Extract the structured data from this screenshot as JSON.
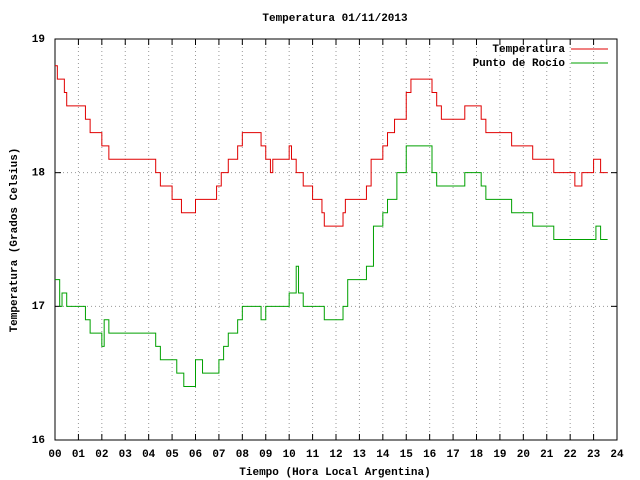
{
  "chart_data": {
    "type": "line",
    "step": true,
    "title": "Temperatura 01/11/2013",
    "xlabel": "Tiempo (Hora Local Argentina)",
    "ylabel": "Temperatura (Grados Celsius)",
    "xlim": [
      0,
      24
    ],
    "ylim": [
      16,
      19
    ],
    "xticks": [
      {
        "value": 0,
        "label": "00"
      },
      {
        "value": 1,
        "label": "01"
      },
      {
        "value": 2,
        "label": "02"
      },
      {
        "value": 3,
        "label": "03"
      },
      {
        "value": 4,
        "label": "04"
      },
      {
        "value": 5,
        "label": "05"
      },
      {
        "value": 6,
        "label": "06"
      },
      {
        "value": 7,
        "label": "07"
      },
      {
        "value": 8,
        "label": "08"
      },
      {
        "value": 9,
        "label": "09"
      },
      10,
      11,
      12,
      13,
      14,
      15,
      16,
      17,
      18,
      19,
      20,
      21,
      22,
      23,
      24
    ],
    "yticks": [
      16,
      17,
      18,
      19
    ],
    "grid": true,
    "legend": "top-right",
    "series": [
      {
        "name": "Temperatura",
        "color": "#e00000",
        "x": [
          0.0,
          0.1,
          0.4,
          0.5,
          1.3,
          1.5,
          2.0,
          2.3,
          4.3,
          4.5,
          5.0,
          5.4,
          6.0,
          6.9,
          7.1,
          7.4,
          7.8,
          8.0,
          8.8,
          9.0,
          9.2,
          9.3,
          10.0,
          10.1,
          10.3,
          10.6,
          11.0,
          11.4,
          11.5,
          12.3,
          12.4,
          13.3,
          13.5,
          14.0,
          14.2,
          14.5,
          15.0,
          15.2,
          16.1,
          16.3,
          16.5,
          17.5,
          18.2,
          18.4,
          19.5,
          20.4,
          21.3,
          22.2,
          22.5,
          23.0,
          23.3,
          23.6
        ],
        "values": [
          18.8,
          18.7,
          18.6,
          18.5,
          18.4,
          18.3,
          18.2,
          18.1,
          18.0,
          17.9,
          17.8,
          17.7,
          17.8,
          17.9,
          18.0,
          18.1,
          18.2,
          18.3,
          18.2,
          18.1,
          18.0,
          18.1,
          18.2,
          18.1,
          18.0,
          17.9,
          17.8,
          17.7,
          17.6,
          17.7,
          17.8,
          17.9,
          18.1,
          18.2,
          18.3,
          18.4,
          18.6,
          18.7,
          18.6,
          18.5,
          18.4,
          18.5,
          18.4,
          18.3,
          18.2,
          18.1,
          18.0,
          17.9,
          18.0,
          18.1,
          18.0,
          18.0
        ]
      },
      {
        "name": "Punto de Rocío",
        "color": "#00a000",
        "x": [
          0.0,
          0.2,
          0.3,
          0.5,
          1.3,
          1.5,
          2.0,
          2.1,
          2.3,
          4.3,
          4.5,
          5.2,
          5.5,
          6.0,
          6.3,
          7.0,
          7.2,
          7.4,
          7.8,
          8.0,
          8.8,
          9.0,
          10.0,
          10.3,
          10.4,
          10.6,
          11.5,
          12.3,
          12.5,
          13.3,
          13.6,
          14.0,
          14.2,
          14.6,
          15.0,
          16.1,
          16.3,
          17.5,
          18.2,
          18.4,
          19.5,
          20.4,
          21.3,
          23.1,
          23.3,
          23.6
        ],
        "values": [
          17.2,
          17.0,
          17.1,
          17.0,
          16.9,
          16.8,
          16.7,
          16.9,
          16.8,
          16.7,
          16.6,
          16.5,
          16.4,
          16.6,
          16.5,
          16.6,
          16.7,
          16.8,
          16.9,
          17.0,
          16.9,
          17.0,
          17.1,
          17.3,
          17.1,
          17.0,
          16.9,
          17.0,
          17.2,
          17.3,
          17.6,
          17.7,
          17.8,
          18.0,
          18.2,
          18.0,
          17.9,
          18.0,
          17.9,
          17.8,
          17.7,
          17.6,
          17.5,
          17.6,
          17.5,
          17.5
        ]
      }
    ]
  }
}
